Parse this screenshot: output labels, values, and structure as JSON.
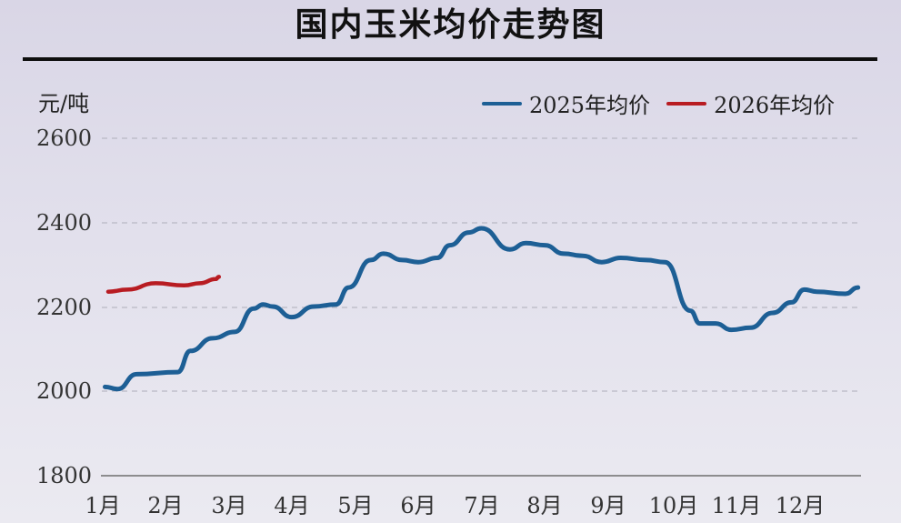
{
  "title": "国内玉米均价走势图",
  "unit_label": "元/吨",
  "legend": [
    {
      "label": "2025年均价",
      "color": "#1d5f95"
    },
    {
      "label": "2026年均价",
      "color": "#b81c22"
    }
  ],
  "y_ticks": [
    "2600",
    "2400",
    "2200",
    "2000",
    "1800"
  ],
  "x_ticks": [
    "1月",
    "2月",
    "3月",
    "4月",
    "5月",
    "6月",
    "7月",
    "8月",
    "9月",
    "10月",
    "11月",
    "12月"
  ],
  "chart_data": {
    "type": "line",
    "title": "国内玉米均价走势图",
    "xlabel": "",
    "ylabel": "元/吨",
    "ylim": [
      1800,
      2600
    ],
    "yticks": [
      1800,
      2000,
      2200,
      2400,
      2600
    ],
    "categories": [
      "1月",
      "2月",
      "3月",
      "4月",
      "5月",
      "6月",
      "7月",
      "8月",
      "9月",
      "10月",
      "11月",
      "12月"
    ],
    "grid": "horizontal dashed",
    "legend_position": "top-right",
    "series": [
      {
        "name": "2025年均价",
        "color": "#1d5f95",
        "x": [
          1.05,
          1.25,
          1.55,
          2.2,
          2.4,
          2.75,
          3.1,
          3.4,
          3.55,
          3.7,
          4.0,
          4.35,
          4.7,
          4.9,
          5.25,
          5.45,
          5.75,
          6.0,
          6.3,
          6.5,
          6.8,
          7.0,
          7.45,
          7.7,
          8.0,
          8.3,
          8.6,
          8.9,
          9.2,
          9.6,
          9.9,
          10.3,
          10.45,
          10.7,
          10.95,
          11.25,
          11.6,
          11.9,
          12.1,
          12.3,
          12.75,
          12.95
        ],
        "values": [
          2010,
          2005,
          2040,
          2045,
          2095,
          2125,
          2140,
          2195,
          2205,
          2200,
          2175,
          2200,
          2205,
          2245,
          2310,
          2325,
          2310,
          2305,
          2315,
          2345,
          2375,
          2385,
          2335,
          2350,
          2345,
          2325,
          2320,
          2305,
          2315,
          2310,
          2305,
          2190,
          2160,
          2160,
          2145,
          2150,
          2185,
          2210,
          2240,
          2235,
          2230,
          2245
        ]
      },
      {
        "name": "2026年均价",
        "color": "#b81c22",
        "x": [
          1.1,
          1.4,
          1.85,
          2.3,
          2.55,
          2.8,
          2.85
        ],
        "values": [
          2235,
          2240,
          2255,
          2250,
          2255,
          2265,
          2270
        ]
      }
    ]
  }
}
